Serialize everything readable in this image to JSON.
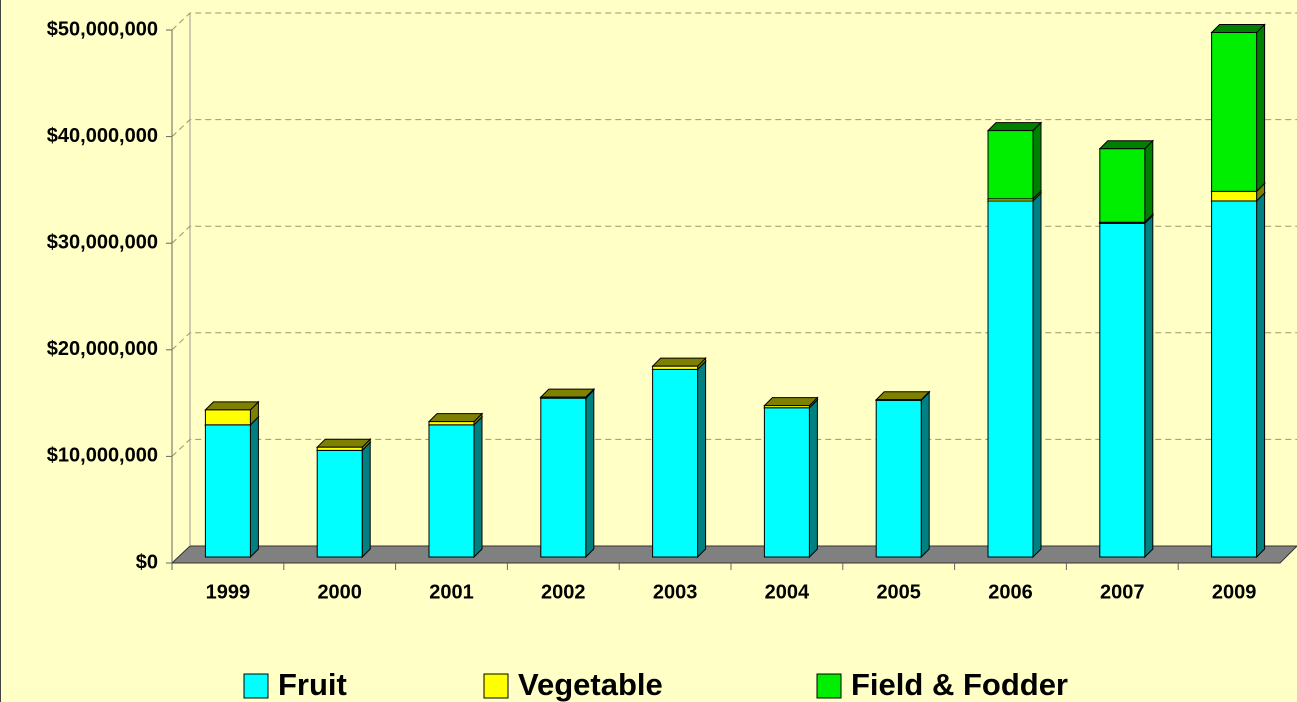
{
  "chart_data": {
    "type": "bar",
    "stacked": true,
    "categories": [
      "1999",
      "2000",
      "2001",
      "2002",
      "2003",
      "2004",
      "2005",
      "2006",
      "2007",
      "2009"
    ],
    "series": [
      {
        "name": "Fruit",
        "color": "#00ffff",
        "values": [
          12400000,
          10000000,
          12400000,
          14900000,
          17600000,
          14000000,
          14700000,
          33400000,
          31300000,
          33400000
        ]
      },
      {
        "name": "Vegetable",
        "color": "#ffff00",
        "values": [
          1400000,
          300000,
          300000,
          100000,
          300000,
          200000,
          50000,
          200000,
          100000,
          900000
        ]
      },
      {
        "name": "Field & Fodder",
        "color": "#00ee00",
        "values": [
          0,
          0,
          0,
          0,
          0,
          0,
          0,
          6400000,
          6900000,
          14900000
        ]
      }
    ],
    "ylim": [
      0,
      50000000
    ],
    "yticks": [
      {
        "value": 0,
        "label": "$0"
      },
      {
        "value": 10000000,
        "label": "$10,000,000"
      },
      {
        "value": 20000000,
        "label": "$20,000,000"
      },
      {
        "value": 30000000,
        "label": "$30,000,000"
      },
      {
        "value": 40000000,
        "label": "$40,000,000"
      },
      {
        "value": 50000000,
        "label": "$50,000,000"
      }
    ],
    "grid": true,
    "legend": "bottom"
  }
}
